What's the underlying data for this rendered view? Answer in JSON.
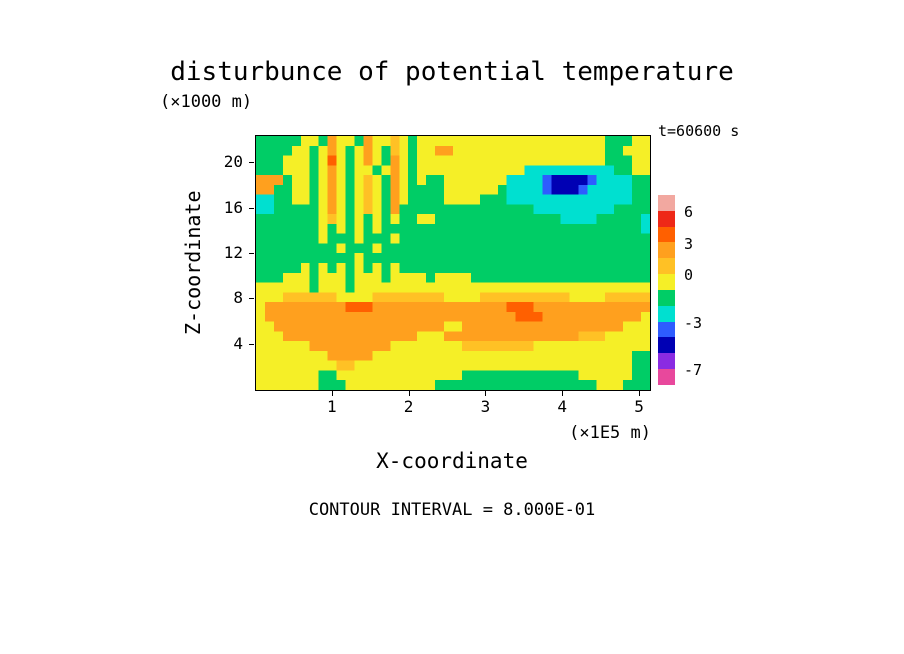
{
  "chart_data": {
    "type": "heatmap",
    "subtype": "filled_contour",
    "title": "disturbunce of potential temperature",
    "time_annotation": "t=60600 s",
    "xlabel": "X-coordinate",
    "ylabel": "Z-coordinate",
    "x_units_label": "(×1E5 m)",
    "y_units_label": "(×1000 m)",
    "footnote": "CONTOUR INTERVAL = 8.000E-01",
    "contour_interval": 0.8,
    "x_range": [
      0,
      5.13
    ],
    "y_range": [
      0,
      22.4
    ],
    "x_ticks": [
      "1",
      "2",
      "3",
      "4",
      "5"
    ],
    "x_tick_values": [
      1,
      2,
      3,
      4,
      5
    ],
    "y_ticks": [
      "20",
      "16",
      "12",
      "8",
      "4"
    ],
    "y_tick_values": [
      20,
      16,
      12,
      8,
      4
    ],
    "palette": {
      "N": "#0000b4",
      "B": "#2e5cff",
      "C": "#00e0d0",
      "G": "#00cd66",
      "Y": "#f5ef27",
      "o": "#ffc125",
      "O": "#ffa01e",
      "R": "#ff6000"
    },
    "value_ranges": {
      "N": "-4.0 to -2.4",
      "B": "-2.4 to -1.6",
      "C": "-1.6 to -0.8",
      "G": "-0.8 to 0.0",
      "Y": "0.0 to 0.8",
      "o": "0.8 to 1.6",
      "O": "1.6 to 3.2",
      "R": "3.2 to 4.8"
    },
    "grid_rows": [
      "GGGGGYYGOYYGOYYoYGYYYYYYYYYYYYYYYYYYYYYGGGYY",
      "GGGGYYGYOYGYOYGoYGYYOOYYYYYYYYYYYYYYYYYGGYYY",
      "GGGYYYGYRYGYOYGOYGYYYYYYYYYYYYYYYYYYYYYGGGYY",
      "GGGYYYGYOYGYYGYOYGYYYYYYYYYYYYCCCCCCCCCCGGYY",
      "OOOGYYGYOYGYoYGOYGYGGYYYYYYYCCCCBNNNNBCCCCGG",
      "OOGGYYGYOYGYoYGOYGGGGYYYYYYGCCCCBNNNBCCCCCGG",
      "CCGGYYGYOYGYoYGOYGGGGYYYYGGGCCCCCCCCCCCCCCGG",
      "CCGGGGGYOYGYoYGOGGGGGGGGGGGGGGGCCCCCCCCCGGGG",
      "GGGGGGGYoYGYGYGYGGYYGGGGGGGGGGGGGGCCCCGGGGGC",
      "GGGGGGGYGYGYGYGGGGGGGGGGGGGGGGGGGGGGGGGGGGGC",
      "GGGGGGGYGGGYGGGYGGGGGGGGGGGGGGGGGGGGGGGGGGGG",
      "GGGGGGGGGYGGGYGGGGGGGGGGGGGGGGGGGGGGGGGGGGGG",
      "GGGGGGGGGGGYGGGGGGGGGGGGGGGGGGGGGGGGGGGGGGGG",
      "GGGGGYGYGYGYGYGYGGGGGGGGGGGGGGGGGGGGGGGGGGGG",
      "GGGYYYGYYYGYYYGYYYYGYYYYGGGGGGGGGGGGGGGGGGGG",
      "YYYYYYGYYYGYYYYYYYYYYYYYYYYYYYYYYYYYYYYYYYYY",
      "YYYooooooYYYYooooooooYYYYooooooooooYYYYooooo",
      "YOOOOOOOOORRROOOOOOOOOOOOOOORRROOOOOOOOOOOOO",
      "YOOOOOOOOOOOOOOOOOOOOOOOOOOOORRROOOOOOOOOOOY",
      "YYOOOOOOOOOOOOOOOOOOOYYOOOOOOOOOOOOOOOOOOYYY",
      "YYYOOOOOOOOOOOOOOOYYYOOOOOOOOOOOOOOOoooYYYYY",
      "YYYYYYOOOOOOOOOYYYYYYYYooooooooYYYYYYYYYYYYY",
      "YYYYYYYYOOOOOYYYYYYYYYYYYYYYYYYYYYYYYYYYYYGG",
      "YYYYYYYYYooYYYYYYYYYYYYYYYYYYYYYYYYYYYYYYYGG",
      "YYYYYYYGGYYYYYYYYYYYYYYGGGGGGGGGGGGGYYYYYYGG",
      "YYYYYYYGGGYYYYYYYYYYGGGGGGGGGGGGGGGGGGYYYGGG"
    ],
    "colorbar": {
      "colors_top_to_bottom": [
        "#f2a8a0",
        "#ee2817",
        "#ff6000",
        "#ffa01e",
        "#ffc125",
        "#f5ef27",
        "#00cd66",
        "#00e0d0",
        "#2e5cff",
        "#0000b4",
        "#8a2be2",
        "#e8489c"
      ],
      "labels": [
        {
          "text": "6",
          "boundary": 1
        },
        {
          "text": "3",
          "boundary": 3
        },
        {
          "text": "0",
          "boundary": 5
        },
        {
          "text": "-3",
          "boundary": 8
        },
        {
          "text": "-7",
          "boundary": 11
        }
      ]
    },
    "legend_position": "right",
    "grid_lines": false
  }
}
